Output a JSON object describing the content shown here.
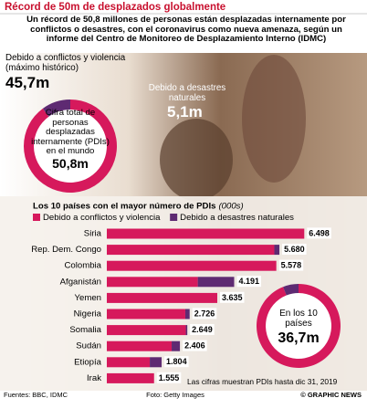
{
  "header": {
    "title": "Récord de 50m de desplazados globalmente",
    "subtitle": "Un récord de 50,8 millones de personas están desplazadas internamente por conflictos o desastres, con el coronavirus como nueva amenaza, según un informe del Centro de Monitoreo de Desplazamiento Interno (IDMC)"
  },
  "chart_data": [
    {
      "type": "pie",
      "donut": true,
      "categories": [
        "Debido a conflictos y violencia (máximo histórico)",
        "Debido a desastres naturales"
      ],
      "values": [
        45.7,
        5.1
      ],
      "value_labels": [
        "45,7m",
        "5,1m"
      ],
      "colors": [
        "#d6195c",
        "#5e2a72"
      ],
      "center_text": "Cifra total de personas desplazadas internamente (PDIs) en el mundo",
      "center_label": "50,8m"
    },
    {
      "type": "bar",
      "orientation": "horizontal",
      "stacked": true,
      "title": "Los 10 países con el mayor número de PDIs",
      "unit": "(000s)",
      "categories": [
        "Siria",
        "Rep. Dem. Congo",
        "Colombia",
        "Afganistán",
        "Yemen",
        "Nigeria",
        "Somalia",
        "Sudán",
        "Etiopía",
        "Irak"
      ],
      "series": [
        {
          "name": "Debido a conflictos y violencia",
          "color": "#d6195c",
          "values": [
            6498,
            5512,
            5578,
            2993,
            3635,
            2583,
            2600,
            2134,
            1414,
            1555
          ]
        },
        {
          "name": "Debido a desastres naturales",
          "color": "#5e2a72",
          "values": [
            0,
            168,
            0,
            1198,
            0,
            143,
            49,
            272,
            390,
            0
          ]
        }
      ],
      "value_labels": [
        "6.498",
        "5.680",
        "5.578",
        "4.191",
        "3.635",
        "2.726",
        "2.649",
        "2.406",
        "1.804",
        "1.555"
      ],
      "xlim": [
        0,
        7000
      ],
      "note": "Las cifras muestran PDIs hasta dic 31, 2019"
    },
    {
      "type": "pie",
      "donut": true,
      "values": [
        34.5,
        2.2
      ],
      "colors": [
        "#d6195c",
        "#5e2a72"
      ],
      "center_text": "En los 10 países",
      "center_label": "36,7m"
    }
  ],
  "footer": {
    "sources": "Fuentes: BBC, IDMC",
    "photo": "Foto: Getty Images",
    "credit": "© GRAPHIC NEWS"
  }
}
